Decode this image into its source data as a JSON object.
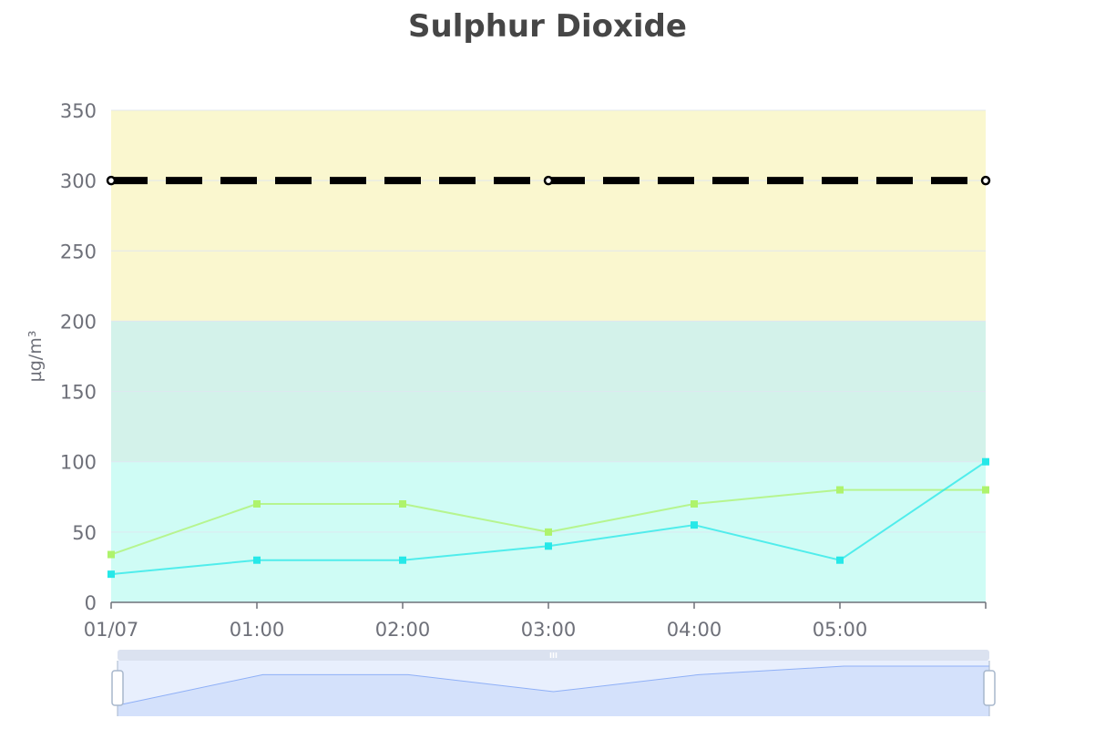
{
  "chart_data": {
    "type": "line",
    "title": "Sulphur Dioxide",
    "ylabel": "µg/m³",
    "xlabel": "",
    "ylim": [
      0,
      350
    ],
    "y_ticks": [
      0,
      50,
      100,
      150,
      200,
      250,
      300,
      350
    ],
    "x_tick_labels": [
      "01/07",
      "01:00",
      "02:00",
      "03:00",
      "04:00",
      "05:00"
    ],
    "x_count": 7,
    "grid": true,
    "bands": [
      {
        "from": 0,
        "to": 100,
        "color": "#cffcf5"
      },
      {
        "from": 100,
        "to": 200,
        "color": "#d3f2ea"
      },
      {
        "from": 200,
        "to": 350,
        "color": "#faf7cf"
      }
    ],
    "threshold": {
      "value": 300,
      "color": "#000000"
    },
    "series": [
      {
        "values": [
          34,
          70,
          70,
          50,
          70,
          80,
          80
        ],
        "color": "#aef36c"
      },
      {
        "values": [
          20,
          30,
          30,
          40,
          55,
          30,
          100
        ],
        "color": "#26e8e8"
      }
    ],
    "data_zoom": {
      "range_start_percent": 0,
      "range_end_percent": 100,
      "fill_color": "#d4e1fb",
      "line_color": "#8fb0f7"
    }
  }
}
